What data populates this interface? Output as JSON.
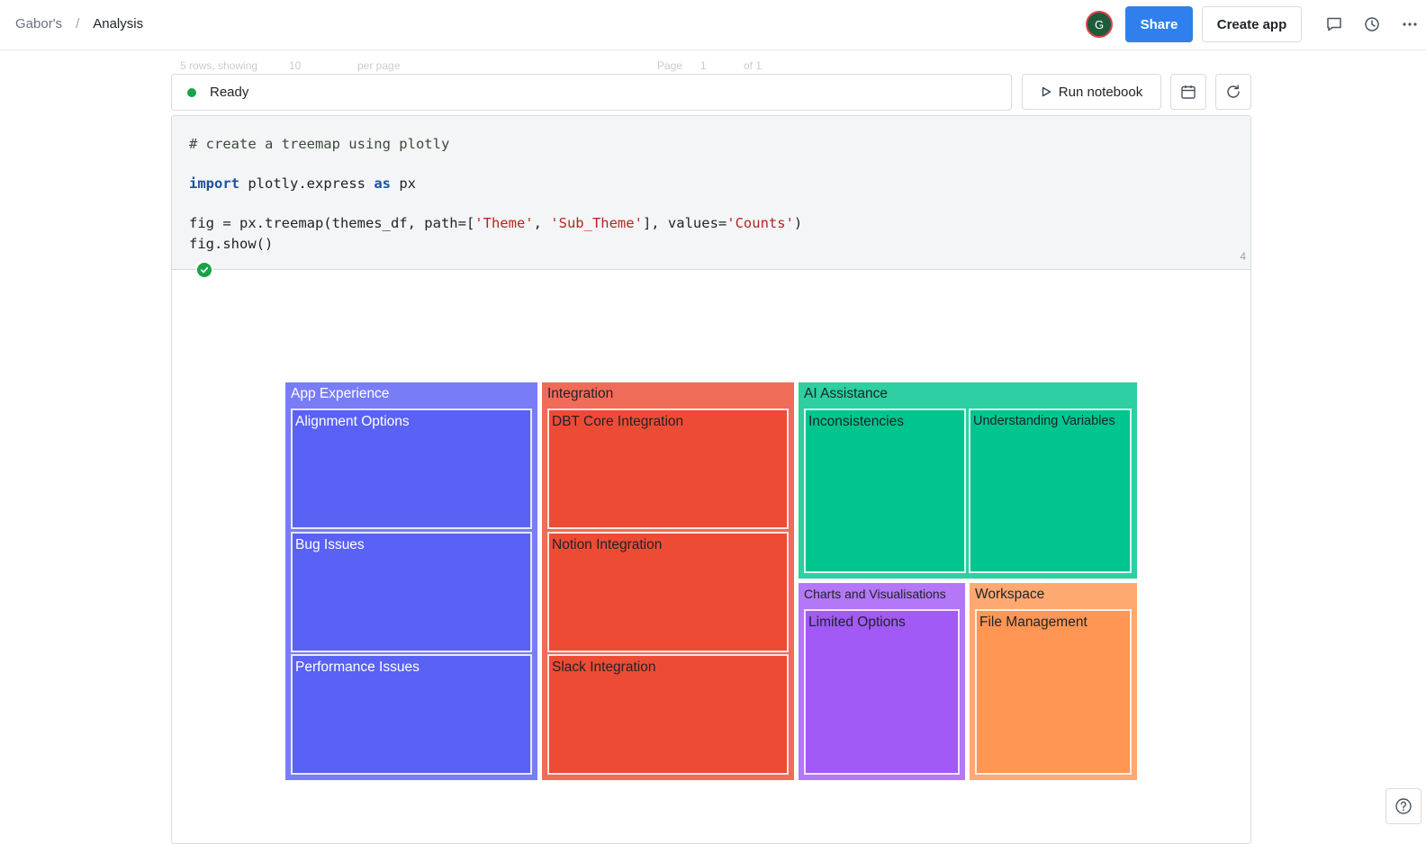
{
  "breadcrumb": {
    "workspace": "Gabor's",
    "separator": "/",
    "page": "Analysis"
  },
  "header": {
    "avatar_initial": "G",
    "share_label": "Share",
    "create_app_label": "Create app"
  },
  "ghost_footer": {
    "rows_text": "5 rows, showing",
    "page_size": "10",
    "per_page": "per page",
    "page_label": "Page",
    "page_num": "1",
    "of_text": "of 1"
  },
  "status": {
    "text": "Ready"
  },
  "toolbar": {
    "run_label": "Run notebook"
  },
  "code": {
    "line1": "# create a treemap using plotly",
    "line3_kw1": "import",
    "line3_mid": " plotly.express ",
    "line3_kw2": "as",
    "line3_end": " px",
    "line5_a": "fig = px.treemap(themes_df, path=[",
    "line5_s1": "'Theme'",
    "line5_b": ", ",
    "line5_s2": "'Sub_Theme'",
    "line5_c": "], values=",
    "line5_s3": "'Counts'",
    "line5_d": ")",
    "line6": "fig.show()",
    "line_number": "4"
  },
  "chart_data": {
    "type": "treemap",
    "groups": [
      {
        "name": "App Experience",
        "color": "#5a61f5",
        "children": [
          "Alignment Options",
          "Bug Issues",
          "Performance Issues"
        ]
      },
      {
        "name": "Integration",
        "color": "#ee4b35",
        "children": [
          "DBT Core Integration",
          "Notion Integration",
          "Slack Integration"
        ]
      },
      {
        "name": "AI Assistance",
        "color": "#00c58e",
        "children": [
          "Inconsistencies",
          "Understanding Variables"
        ]
      },
      {
        "name": "Charts and Visualisations",
        "color": "#a259f6",
        "children": [
          "Limited Options"
        ]
      },
      {
        "name": "Workspace",
        "color": "#ff9653",
        "children": [
          "File Management"
        ]
      }
    ]
  }
}
